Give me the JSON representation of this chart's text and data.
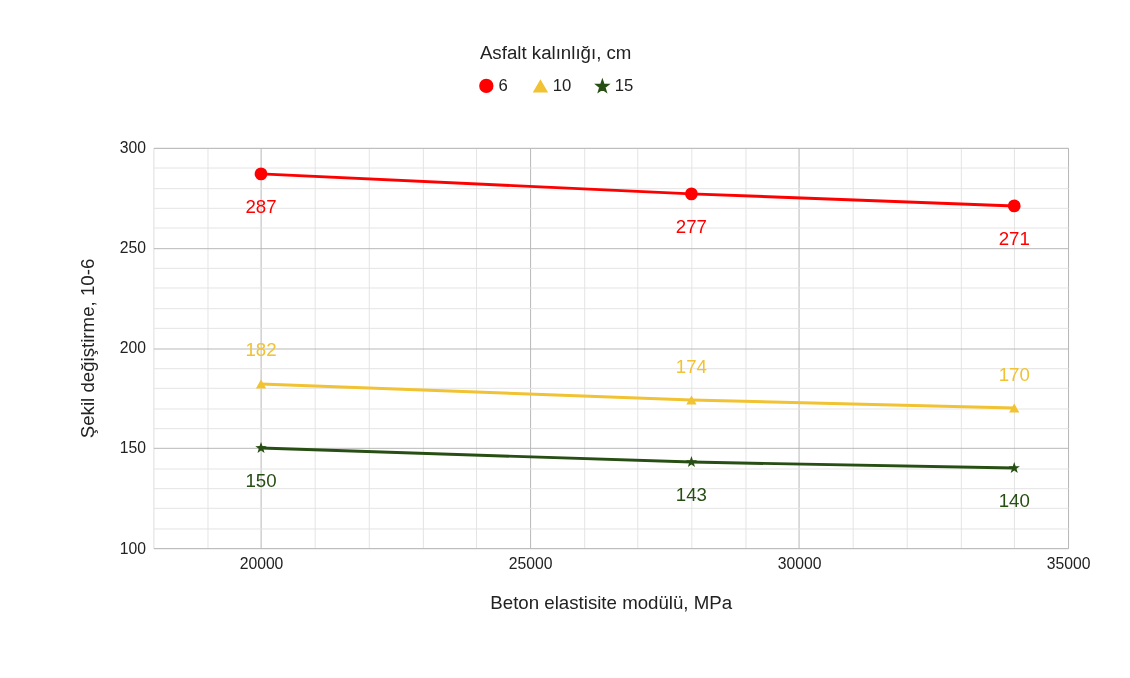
{
  "chart_data": {
    "type": "line",
    "xlabel": "Beton elastisite modülü, MPa",
    "ylabel": "Şekil değiştirme, 10-6",
    "legend_title": "Asfalt kalınlığı, cm",
    "x": [
      20000,
      28000,
      34000
    ],
    "series": [
      {
        "name": "6",
        "color": "#ff0000",
        "marker": "circle",
        "values": [
          287,
          277,
          271
        ]
      },
      {
        "name": "10",
        "color": "#f1c232",
        "marker": "triangle",
        "values": [
          182,
          174,
          170
        ]
      },
      {
        "name": "15",
        "color": "#274e13",
        "marker": "star",
        "values": [
          150,
          143,
          140
        ]
      }
    ],
    "xlim": [
      18000,
      35000
    ],
    "xticks": [
      {
        "value": 19000,
        "label": null
      },
      20000,
      {
        "value": 21000,
        "label": null
      },
      {
        "value": 22000,
        "label": null
      },
      {
        "value": 23000,
        "label": null
      },
      {
        "value": 24000,
        "label": null
      },
      25000,
      {
        "value": 26000,
        "label": null
      },
      {
        "value": 27000,
        "label": null
      },
      {
        "value": 28000,
        "label": null
      },
      {
        "value": 29000,
        "label": null
      },
      30000,
      {
        "value": 31000,
        "label": null
      },
      {
        "value": 32000,
        "label": null
      },
      {
        "value": 33000,
        "label": null
      },
      {
        "value": 34000,
        "label": null
      },
      35000
    ],
    "ylim": [
      100,
      300
    ],
    "yticks": [
      100,
      {
        "value": 110,
        "label": null
      },
      {
        "value": 120,
        "label": null
      },
      {
        "value": 130,
        "label": null
      },
      {
        "value": 140,
        "label": null
      },
      150,
      {
        "value": 160,
        "label": null
      },
      {
        "value": 170,
        "label": null
      },
      {
        "value": 180,
        "label": null
      },
      {
        "value": 190,
        "label": null
      },
      200,
      {
        "value": 210,
        "label": null
      },
      {
        "value": 220,
        "label": null
      },
      {
        "value": 230,
        "label": null
      },
      {
        "value": 240,
        "label": null
      },
      250,
      {
        "value": 260,
        "label": null
      },
      {
        "value": 270,
        "label": null
      },
      {
        "value": 280,
        "label": null
      },
      {
        "value": 290,
        "label": null
      },
      300
    ],
    "grid": true,
    "legend": "top",
    "data_labels": true
  }
}
